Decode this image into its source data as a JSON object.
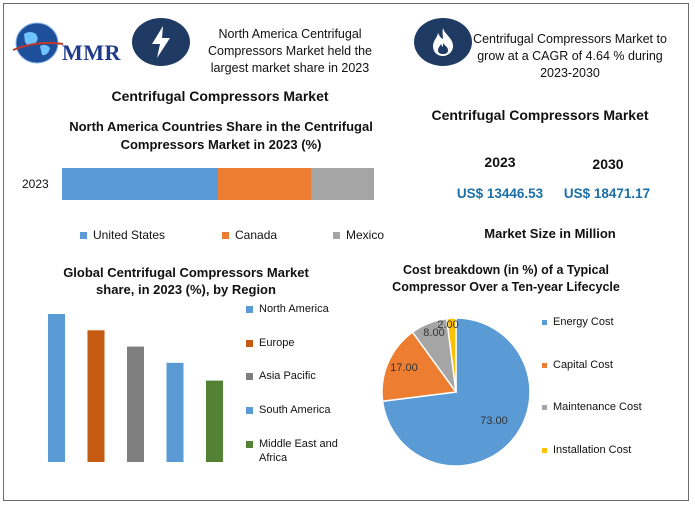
{
  "logo": {
    "text": "MMR"
  },
  "header": {
    "left_note": "North America Centrifugal Compressors Market held the largest market share in 2023",
    "right_note": "Centrifugal Compressors Market to grow at a CAGR of 4.64 % during 2023-2030"
  },
  "icons": {
    "left": "lightning-icon",
    "right": "flame-icon"
  },
  "main_title": "Centrifugal Compressors Market",
  "market_size": {
    "title": "Centrifugal Compressors Market",
    "year_a": "2023",
    "year_b": "2030",
    "value_a": "US$ 13446.53",
    "value_b": "US$ 18471.17",
    "caption": "Market Size in Million"
  },
  "colors": {
    "blue": "#5b9bd5",
    "orange": "#ed7d31",
    "gray": "#a5a5a5",
    "yellow": "#ffc000",
    "dark_orange": "#c55a11",
    "green": "#548235",
    "navy": "#1f3b63"
  },
  "chart_data": [
    {
      "type": "bar",
      "orientation": "horizontal-stacked",
      "title": "North America Countries Share in the Centrifugal Compressors Market in 2023 (%)",
      "categories": [
        "2023"
      ],
      "series": [
        {
          "name": "United States",
          "values": [
            50
          ],
          "color": "#5b9bd5"
        },
        {
          "name": "Canada",
          "values": [
            30
          ],
          "color": "#ed7d31"
        },
        {
          "name": "Mexico",
          "values": [
            20
          ],
          "color": "#a5a5a5"
        }
      ],
      "xlim": [
        0,
        100
      ],
      "legend": "bottom"
    },
    {
      "type": "bar",
      "title": "Global Centrifugal Compressors Market share, in 2023 (%), by Region",
      "series": [
        {
          "name": "North America",
          "values": [
            100
          ],
          "color": "#5b9bd5"
        },
        {
          "name": "Europe",
          "values": [
            89
          ],
          "color": "#c55a11"
        },
        {
          "name": "Asia Pacific",
          "values": [
            78
          ],
          "color": "#7f7f7f"
        },
        {
          "name": "South America",
          "values": [
            67
          ],
          "color": "#5b9bd5"
        },
        {
          "name": "Middle East and Africa",
          "values": [
            55
          ],
          "color": "#548235"
        }
      ],
      "ylim": [
        0,
        100
      ],
      "legend": "right"
    },
    {
      "type": "pie",
      "title": "Cost breakdown (in %) of a Typical Compressor Over a Ten-year Lifecycle",
      "labels": [
        "Energy Cost",
        "Capital Cost",
        "Maintenance Cost",
        "Installation Cost"
      ],
      "values": [
        73.0,
        17.0,
        8.0,
        2.0
      ],
      "value_labels": [
        "73.00",
        "17.00",
        "8.00",
        "2.00"
      ],
      "colors": [
        "#5b9bd5",
        "#ed7d31",
        "#a5a5a5",
        "#ffc000"
      ],
      "legend": "right"
    }
  ]
}
